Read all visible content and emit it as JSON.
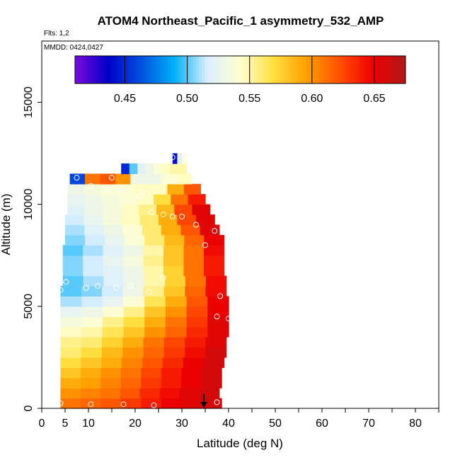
{
  "chart_data": {
    "type": "heatmap",
    "title": "ATOM4 Northeast_Pacific_1 asymmetry_532_AMP",
    "flights_label": "Flts: 1,2",
    "dates_label": "MMDD: 0424,0427",
    "xlabel": "Latitude (deg N)",
    "ylabel": "Altitude (m)",
    "xlim": [
      0,
      85
    ],
    "ylim": [
      0,
      18000
    ],
    "x_ticks": [
      0,
      5,
      10,
      20,
      30,
      40,
      50,
      60,
      70,
      80
    ],
    "x_tick_labels": [
      "0",
      "5",
      "10",
      "20",
      "30",
      "40",
      "50",
      "60",
      "70",
      "80"
    ],
    "y_ticks": [
      0,
      5000,
      10000,
      15000
    ],
    "y_tick_labels": [
      "0",
      "5000",
      "10000",
      "15000"
    ],
    "colorbar": {
      "min": 0.41,
      "max": 0.675,
      "ticks": [
        0.45,
        0.5,
        0.55,
        0.6,
        0.65
      ],
      "tick_labels": [
        "0.45",
        "0.50",
        "0.55",
        "0.60",
        "0.65"
      ],
      "colors": [
        "#7a0ae0",
        "#0000c8",
        "#0050e0",
        "#00b0f8",
        "#dceeff",
        "#ffffd0",
        "#ffe040",
        "#ffa000",
        "#ff5000",
        "#f00000",
        "#b01818"
      ]
    },
    "grid": false,
    "legend": "colorbar top",
    "arrow_marker_lat": 34.7,
    "series": [
      {
        "alt": 250,
        "lat_min": 4,
        "lat_max": 38.5,
        "values": [
          0.61,
          0.615,
          0.62,
          0.63,
          0.64,
          0.65,
          0.655,
          0.66
        ]
      },
      {
        "alt": 750,
        "lat_min": 4,
        "lat_max": 38,
        "values": [
          0.6,
          0.605,
          0.61,
          0.62,
          0.635,
          0.645,
          0.655,
          0.66
        ]
      },
      {
        "alt": 1250,
        "lat_min": 4,
        "lat_max": 38.5,
        "values": [
          0.59,
          0.595,
          0.605,
          0.615,
          0.63,
          0.64,
          0.65,
          0.66
        ]
      },
      {
        "alt": 1750,
        "lat_min": 4,
        "lat_max": 38.5,
        "values": [
          0.58,
          0.59,
          0.6,
          0.61,
          0.625,
          0.64,
          0.65,
          0.66
        ]
      },
      {
        "alt": 2250,
        "lat_min": 4,
        "lat_max": 39,
        "values": [
          0.57,
          0.58,
          0.59,
          0.605,
          0.62,
          0.635,
          0.65,
          0.66
        ]
      },
      {
        "alt": 2750,
        "lat_min": 4,
        "lat_max": 39.5,
        "values": [
          0.56,
          0.57,
          0.585,
          0.6,
          0.615,
          0.63,
          0.645,
          0.66
        ]
      },
      {
        "alt": 3250,
        "lat_min": 4,
        "lat_max": 39.5,
        "values": [
          0.555,
          0.56,
          0.575,
          0.59,
          0.61,
          0.625,
          0.64,
          0.655
        ]
      },
      {
        "alt": 3750,
        "lat_min": 4,
        "lat_max": 40,
        "values": [
          0.545,
          0.55,
          0.565,
          0.58,
          0.6,
          0.615,
          0.635,
          0.655
        ]
      },
      {
        "alt": 4250,
        "lat_min": 4,
        "lat_max": 40,
        "values": [
          0.535,
          0.54,
          0.555,
          0.57,
          0.59,
          0.61,
          0.63,
          0.655
        ]
      },
      {
        "alt": 4750,
        "lat_min": 4,
        "lat_max": 40,
        "values": [
          0.525,
          0.53,
          0.54,
          0.555,
          0.58,
          0.6,
          0.625,
          0.65
        ]
      },
      {
        "alt": 5250,
        "lat_min": 4,
        "lat_max": 40,
        "values": [
          0.51,
          0.515,
          0.525,
          0.54,
          0.565,
          0.59,
          0.62,
          0.65
        ]
      },
      {
        "alt": 5750,
        "lat_min": 4,
        "lat_max": 39.5,
        "values": [
          0.5,
          0.505,
          0.515,
          0.53,
          0.555,
          0.58,
          0.615,
          0.645
        ]
      },
      {
        "alt": 6250,
        "lat_min": 4.5,
        "lat_max": 39.5,
        "values": [
          0.5,
          0.51,
          0.52,
          0.53,
          0.55,
          0.575,
          0.61,
          0.645
        ]
      },
      {
        "alt": 6750,
        "lat_min": 4.5,
        "lat_max": 39,
        "values": [
          0.505,
          0.515,
          0.52,
          0.53,
          0.55,
          0.575,
          0.61,
          0.64
        ]
      },
      {
        "alt": 7250,
        "lat_min": 4.5,
        "lat_max": 39,
        "values": [
          0.505,
          0.515,
          0.525,
          0.535,
          0.555,
          0.58,
          0.61,
          0.64
        ]
      },
      {
        "alt": 7750,
        "lat_min": 4.5,
        "lat_max": 39,
        "values": [
          0.5,
          0.51,
          0.52,
          0.53,
          0.55,
          0.58,
          0.61,
          0.645
        ]
      },
      {
        "alt": 8250,
        "lat_min": 5,
        "lat_max": 39,
        "values": [
          0.505,
          0.515,
          0.525,
          0.54,
          0.56,
          0.585,
          0.615,
          0.65
        ]
      },
      {
        "alt": 8750,
        "lat_min": 5,
        "lat_max": 38,
        "values": [
          0.51,
          0.52,
          0.53,
          0.54,
          0.56,
          0.59,
          0.62,
          0.655
        ]
      },
      {
        "alt": 9250,
        "lat_min": 5,
        "lat_max": 37,
        "values": [
          0.515,
          0.525,
          0.535,
          0.545,
          0.56,
          0.59,
          0.625,
          0.655
        ]
      },
      {
        "alt": 9750,
        "lat_min": 5.5,
        "lat_max": 36,
        "values": [
          0.52,
          0.53,
          0.535,
          0.545,
          0.555,
          0.585,
          0.625,
          0.655
        ]
      },
      {
        "alt": 10250,
        "lat_min": 5.5,
        "lat_max": 35,
        "values": [
          0.525,
          0.53,
          0.535,
          0.54,
          0.545,
          0.57,
          0.61,
          0.64
        ]
      },
      {
        "alt": 10750,
        "lat_min": 5.5,
        "lat_max": 34,
        "values": [
          0.53,
          0.535,
          0.54,
          0.54,
          0.545,
          0.545,
          0.59,
          0.62
        ]
      },
      {
        "alt": 11250,
        "lat_min": 6,
        "lat_max": 32,
        "values": [
          0.46,
          0.61,
          0.62,
          0.6,
          0.53,
          0.53,
          0.54,
          0.545
        ]
      },
      {
        "alt": 11750,
        "lat_min": 17,
        "lat_max": 31,
        "values": [
          0.45,
          0.5,
          0.52,
          0.53,
          0.54,
          0.545,
          0.55,
          0.55
        ]
      },
      {
        "alt": 12250,
        "lat_min": 28,
        "lat_max": 31,
        "values": [
          0.44,
          0.52,
          0.54
        ]
      }
    ],
    "sample_points": [
      {
        "lat": 4,
        "alt": 250
      },
      {
        "lat": 10.5,
        "alt": 200
      },
      {
        "lat": 17.5,
        "alt": 200
      },
      {
        "lat": 24,
        "alt": 150
      },
      {
        "lat": 37.5,
        "alt": 300
      },
      {
        "lat": 4,
        "alt": 5800
      },
      {
        "lat": 5.2,
        "alt": 6200
      },
      {
        "lat": 9.5,
        "alt": 5900
      },
      {
        "lat": 12,
        "alt": 6000
      },
      {
        "lat": 16,
        "alt": 5900
      },
      {
        "lat": 19,
        "alt": 6000
      },
      {
        "lat": 23,
        "alt": 5700
      },
      {
        "lat": 26,
        "alt": 6400
      },
      {
        "lat": 38.2,
        "alt": 5500
      },
      {
        "lat": 40,
        "alt": 4400
      },
      {
        "lat": 37.5,
        "alt": 4500
      },
      {
        "lat": 35,
        "alt": 8000
      },
      {
        "lat": 37,
        "alt": 8700
      },
      {
        "lat": 33,
        "alt": 9000
      },
      {
        "lat": 30,
        "alt": 9400
      },
      {
        "lat": 28,
        "alt": 9400
      },
      {
        "lat": 26,
        "alt": 9500
      },
      {
        "lat": 23.5,
        "alt": 9600
      },
      {
        "lat": 21,
        "alt": 10400
      },
      {
        "lat": 21.5,
        "alt": 10600
      },
      {
        "lat": 17,
        "alt": 10700
      },
      {
        "lat": 14,
        "alt": 10700
      },
      {
        "lat": 10.5,
        "alt": 10900
      },
      {
        "lat": 15,
        "alt": 11300
      },
      {
        "lat": 7.5,
        "alt": 11300
      },
      {
        "lat": 28,
        "alt": 12300
      },
      {
        "lat": 31,
        "alt": 12300
      }
    ]
  }
}
